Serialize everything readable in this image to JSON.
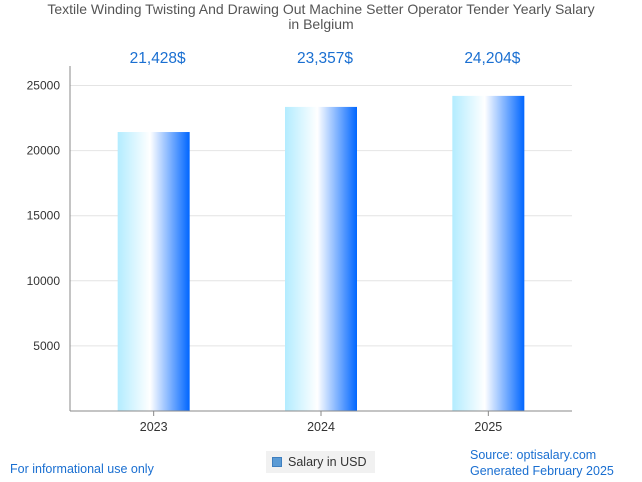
{
  "chart_data": {
    "type": "bar",
    "title_lines": [
      "Textile Winding Twisting And Drawing Out Machine Setter Operator Tender Yearly Salary",
      "in Belgium"
    ],
    "categories": [
      "2023",
      "2024",
      "2025"
    ],
    "series": [
      {
        "name": "Salary in USD",
        "values": [
          21428,
          23357,
          24204
        ]
      }
    ],
    "value_labels": [
      "21,428$",
      "23,357$",
      "24,204$"
    ],
    "y_ticks": [
      5000,
      10000,
      15000,
      20000,
      25000
    ],
    "ylim": [
      0,
      25000
    ],
    "grid": true,
    "legend_position": "bottom-center"
  },
  "colors": {
    "bar_light": "#b3ecff",
    "bar_white": "#ffffff",
    "bar_dark": "#0066ff",
    "value_label": "#1a6fd1",
    "grid": "#e4e4e4",
    "axis": "#888888"
  },
  "footer": {
    "left": "For informational use only",
    "source": "Source: optisalary.com",
    "generated": "Generated February 2025"
  },
  "legend": {
    "label": "Salary in USD"
  }
}
